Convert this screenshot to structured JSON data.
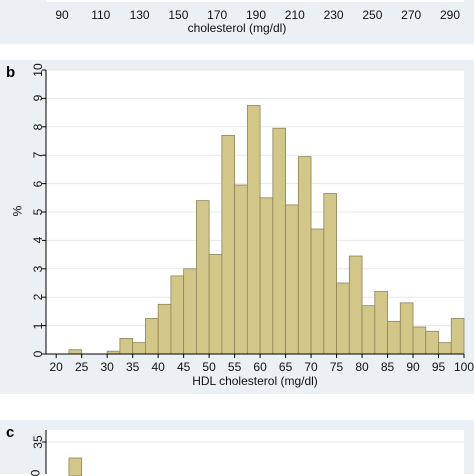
{
  "chart_data": [
    {
      "type": "bar",
      "panel": "",
      "xlabel": "cholesterol (mg/dl)",
      "ylabel": "",
      "x_ticks": [
        90,
        110,
        130,
        150,
        170,
        190,
        210,
        230,
        250,
        270,
        290
      ],
      "note": ""
    },
    {
      "type": "bar",
      "panel": "b",
      "title": "",
      "xlabel": "HDL cholesterol (mg/dl)",
      "ylabel": "%",
      "xlim": [
        18,
        100
      ],
      "ylim": [
        0,
        10
      ],
      "x_ticks": [
        20,
        25,
        30,
        35,
        40,
        45,
        50,
        55,
        60,
        65,
        70,
        75,
        80,
        85,
        90,
        95,
        100
      ],
      "y_ticks": [
        0,
        1,
        2,
        3,
        4,
        5,
        6,
        7,
        8,
        9,
        10
      ],
      "bin_width": 2.5,
      "bins": [
        {
          "start": 22.5,
          "value": 0.15
        },
        {
          "start": 30.0,
          "value": 0.1
        },
        {
          "start": 32.5,
          "value": 0.55
        },
        {
          "start": 35.0,
          "value": 0.4
        },
        {
          "start": 37.5,
          "value": 1.25
        },
        {
          "start": 40.0,
          "value": 1.75
        },
        {
          "start": 42.5,
          "value": 2.75
        },
        {
          "start": 45.0,
          "value": 3.0
        },
        {
          "start": 47.5,
          "value": 5.4
        },
        {
          "start": 50.0,
          "value": 3.5
        },
        {
          "start": 52.5,
          "value": 7.7
        },
        {
          "start": 55.0,
          "value": 5.95
        },
        {
          "start": 57.5,
          "value": 8.75
        },
        {
          "start": 60.0,
          "value": 5.5
        },
        {
          "start": 62.5,
          "value": 7.95
        },
        {
          "start": 65.0,
          "value": 5.25
        },
        {
          "start": 67.5,
          "value": 6.95
        },
        {
          "start": 70.0,
          "value": 4.4
        },
        {
          "start": 72.5,
          "value": 5.65
        },
        {
          "start": 75.0,
          "value": 2.5
        },
        {
          "start": 77.5,
          "value": 3.45
        },
        {
          "start": 80.0,
          "value": 1.7
        },
        {
          "start": 82.5,
          "value": 2.2
        },
        {
          "start": 85.0,
          "value": 1.15
        },
        {
          "start": 87.5,
          "value": 1.8
        },
        {
          "start": 90.0,
          "value": 0.95
        },
        {
          "start": 92.5,
          "value": 0.8
        },
        {
          "start": 95.0,
          "value": 0.4
        },
        {
          "start": 97.5,
          "value": 1.25
        }
      ],
      "grid": true,
      "bar_color": "#d2c689",
      "bar_edge_color": "#8e8458"
    },
    {
      "type": "bar",
      "panel": "c",
      "xlabel": "",
      "ylabel": "",
      "y_ticks": [
        35
      ],
      "visible_bar": {
        "start": 22.5,
        "value": 33
      },
      "y_visible_range": [
        31,
        36.5
      ]
    }
  ],
  "colors": {
    "panel_bg": "#ebf0f4",
    "plot_bg": "#ffffff",
    "grid": "#e6e9ec",
    "bar": "#d2c689",
    "bar_edge": "#8e8458"
  }
}
